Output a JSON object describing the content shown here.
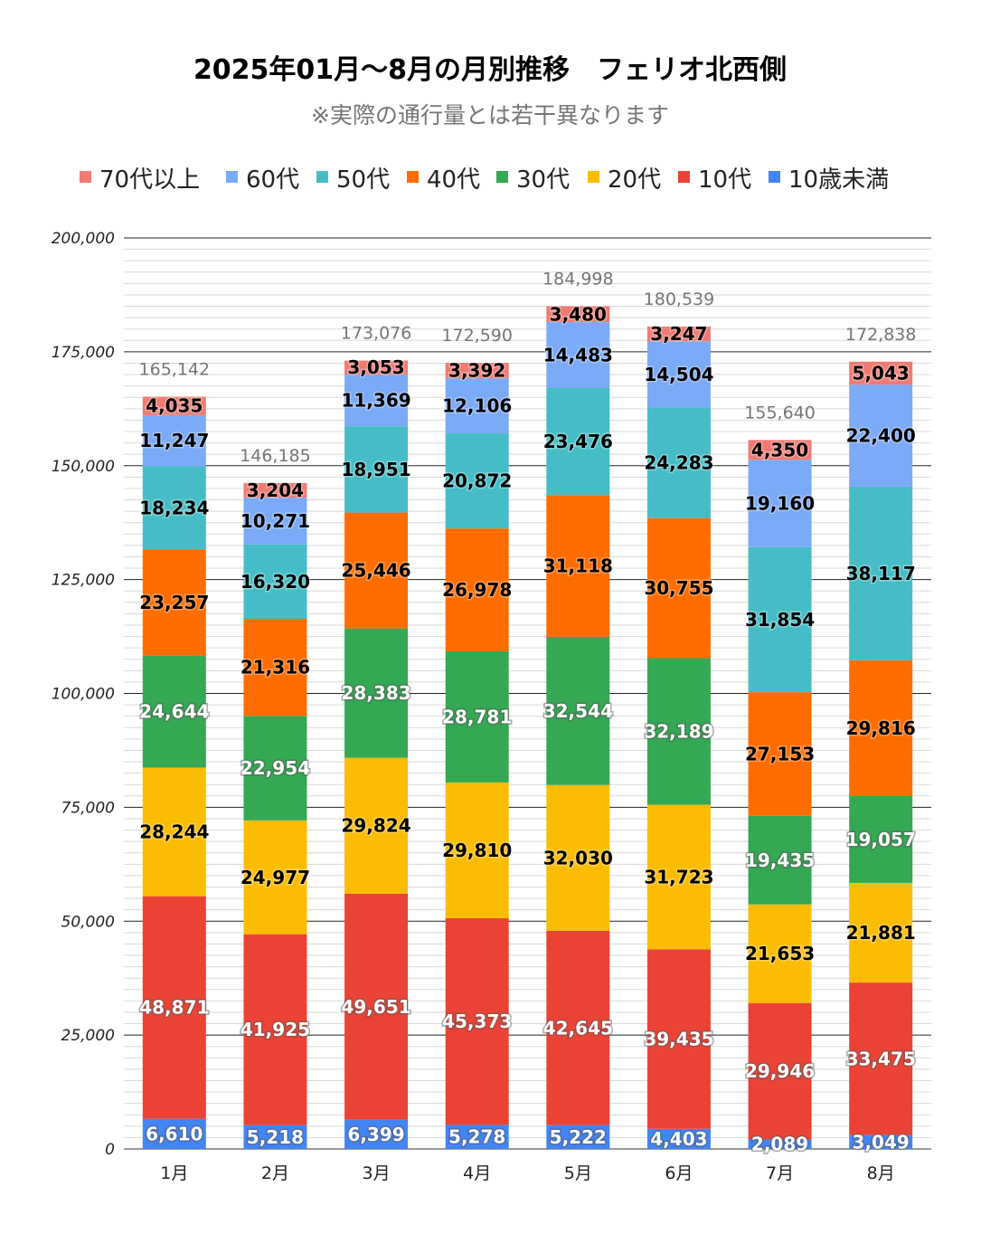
{
  "chart_data": {
    "type": "bar",
    "stacked": true,
    "title": "2025年01月～8月の月別推移　フェリオ北西側",
    "subtitle": "※実際の通行量とは若干異なります",
    "xlabel": "",
    "ylabel": "",
    "ylim": [
      0,
      200000
    ],
    "yticks": [
      "0",
      "25,000",
      "50,000",
      "75,000",
      "100,000",
      "125,000",
      "150,000",
      "175,000",
      "200,000"
    ],
    "ytick_values": [
      0,
      25000,
      50000,
      75000,
      100000,
      125000,
      150000,
      175000,
      200000
    ],
    "grid": true,
    "legend_position": "top",
    "categories": [
      "1月",
      "2月",
      "3月",
      "4月",
      "5月",
      "6月",
      "7月",
      "8月"
    ],
    "series": [
      {
        "name": "10歳未満",
        "color": "#4285f4",
        "label_color": "#ffffff",
        "values": [
          6610,
          5218,
          6399,
          5278,
          5222,
          4403,
          2089,
          3049
        ],
        "labels": [
          "6,610",
          "5,218",
          "6,399",
          "5,278",
          "5,222",
          "4,403",
          "2,089",
          "3,049"
        ]
      },
      {
        "name": "10代",
        "color": "#ea4335",
        "label_color": "#ffffff",
        "values": [
          48871,
          41925,
          49651,
          45373,
          42645,
          39435,
          29946,
          33475
        ],
        "labels": [
          "48,871",
          "41,925",
          "49,651",
          "45,373",
          "42,645",
          "39,435",
          "29,946",
          "33,475"
        ]
      },
      {
        "name": "20代",
        "color": "#fbbc04",
        "label_color": "#000000",
        "values": [
          28244,
          24977,
          29824,
          29810,
          32030,
          31723,
          21653,
          21881
        ],
        "labels": [
          "28,244",
          "24,977",
          "29,824",
          "29,810",
          "32,030",
          "31,723",
          "21,653",
          "21,881"
        ]
      },
      {
        "name": "30代",
        "color": "#34a853",
        "label_color": "#ffffff",
        "values": [
          24644,
          22954,
          28383,
          28781,
          32544,
          32189,
          19435,
          19057
        ],
        "labels": [
          "24,644",
          "22,954",
          "28,383",
          "28,781",
          "32,544",
          "32,189",
          "19,435",
          "19,057"
        ]
      },
      {
        "name": "40代",
        "color": "#ff6d01",
        "label_color": "#000000",
        "values": [
          23257,
          21316,
          25446,
          26978,
          31118,
          30755,
          27153,
          29816
        ],
        "labels": [
          "23,257",
          "21,316",
          "25,446",
          "26,978",
          "31,118",
          "30,755",
          "27,153",
          "29,816"
        ]
      },
      {
        "name": "50代",
        "color": "#46bdc6",
        "label_color": "#000000",
        "values": [
          18234,
          16320,
          18951,
          20872,
          23476,
          24283,
          31854,
          38117
        ],
        "labels": [
          "18,234",
          "16,320",
          "18,951",
          "20,872",
          "23,476",
          "24,283",
          "31,854",
          "38,117"
        ]
      },
      {
        "name": "60代",
        "color": "#7baaf7",
        "label_color": "#000000",
        "values": [
          11247,
          10271,
          11369,
          12106,
          14483,
          14504,
          19160,
          22400
        ],
        "labels": [
          "11,247",
          "10,271",
          "11,369",
          "12,106",
          "14,483",
          "14,504",
          "19,160",
          "22,400"
        ]
      },
      {
        "name": "70代以上",
        "color": "#f07b72",
        "label_color": "#000000",
        "values": [
          4035,
          3204,
          3053,
          3392,
          3480,
          3247,
          4350,
          5043
        ],
        "labels": [
          "4,035",
          "3,204",
          "3,053",
          "3,392",
          "3,480",
          "3,247",
          "4,350",
          "5,043"
        ]
      }
    ],
    "totals": [
      165142,
      146185,
      173076,
      172590,
      184998,
      180539,
      155640,
      172838
    ],
    "total_labels": [
      "165,142",
      "146,185",
      "173,076",
      "172,590",
      "184,998",
      "180,539",
      "155,640",
      "172,838"
    ],
    "legend_order": [
      "70代以上",
      "60代",
      "50代",
      "40代",
      "30代",
      "20代",
      "10代",
      "10歳未満"
    ]
  }
}
